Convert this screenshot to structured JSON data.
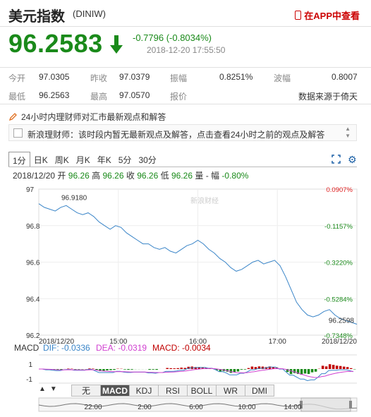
{
  "header": {
    "title": "美元指数",
    "code": "(DINIW)",
    "app_link": "在APP中查看"
  },
  "quote": {
    "price": "96.2583",
    "change": "-0.7796 (-0.8034%)",
    "timestamp": "2018-12-20 17:55:50"
  },
  "stats": {
    "row1": [
      {
        "label": "今开",
        "value": "97.0305"
      },
      {
        "label": "昨收",
        "value": "97.0379"
      },
      {
        "label": "振幅",
        "value": "0.8251%"
      },
      {
        "label": "波幅",
        "value": "0.8007"
      }
    ],
    "row2": [
      {
        "label": "最低",
        "value": "96.2563"
      },
      {
        "label": "最高",
        "value": "97.0570"
      },
      {
        "label": "报价",
        "value": "数据来源于倚天"
      }
    ]
  },
  "news": {
    "heading": "24小时内理财师对汇市最新观点和解答",
    "item": "新浪理财师：该时段内暂无最新观点及解答，点击查看24小时之前的观点及解答"
  },
  "tabs": [
    "1分",
    "日K",
    "周K",
    "月K",
    "年K",
    "5分",
    "30分"
  ],
  "active_tab": "1分",
  "chart_info": {
    "date": "2018/12/20",
    "open_label": "开",
    "open": "96.26",
    "high_label": "高",
    "high": "96.26",
    "close_label": "收",
    "close": "96.26",
    "low_label": "低",
    "low": "96.26",
    "vol_label": "量",
    "dash": "-",
    "amp_label": "幅",
    "amp": "-0.80%"
  },
  "watermark": "新浪财经",
  "macd": {
    "label": "MACD",
    "dif": "DIF: -0.0336",
    "dea": "DEA: -0.0319",
    "macd": "MACD: -0.0034",
    "ytick_top": "1",
    "ytick_bottom": "-1"
  },
  "indicators": [
    "无",
    "MACD",
    "KDJ",
    "RSI",
    "BOLL",
    "WR",
    "DMI"
  ],
  "active_indicator": "MACD",
  "navigator_ticks": [
    "22:00",
    "2:00",
    "6:00",
    "10:00",
    "14:00"
  ],
  "colors": {
    "down": "#1a8a1a",
    "up": "#e02020",
    "line": "#3a85c8",
    "dif": "#3a85c8",
    "dea": "#d040d0",
    "macd": "#c00000"
  },
  "chart_data": {
    "type": "line",
    "xlabel": "",
    "ylabel": "",
    "x_ticks": [
      "2018/12/20",
      "15:00",
      "16:00",
      "17:00",
      "2018/12/20"
    ],
    "y_ticks": [
      "97",
      "96.8",
      "96.6",
      "96.4",
      "96.2"
    ],
    "right_ticks": [
      "0.0907%",
      "-0.1157%",
      "-0.3220%",
      "-0.5284%",
      "-0.7348%"
    ],
    "ylim": [
      96.2,
      97.0
    ],
    "annotations": {
      "max": "96.9180",
      "last": "96.2598"
    },
    "series": [
      {
        "values": [
          96.92,
          96.9,
          96.89,
          96.88,
          96.9,
          96.91,
          96.89,
          96.87,
          96.86,
          96.87,
          96.85,
          96.82,
          96.8,
          96.78,
          96.8,
          96.79,
          96.76,
          96.74,
          96.72,
          96.7,
          96.7,
          96.68,
          96.67,
          96.68,
          96.66,
          96.65,
          96.67,
          96.69,
          96.7,
          96.72,
          96.7,
          96.67,
          96.65,
          96.62,
          96.6,
          96.57,
          96.55,
          96.56,
          96.58,
          96.6,
          96.61,
          96.59,
          96.6,
          96.61,
          96.58,
          96.52,
          96.45,
          96.38,
          96.34,
          96.31,
          96.3,
          96.31,
          96.33,
          96.34,
          96.31,
          96.29,
          96.28,
          96.27,
          96.26
        ]
      }
    ]
  }
}
